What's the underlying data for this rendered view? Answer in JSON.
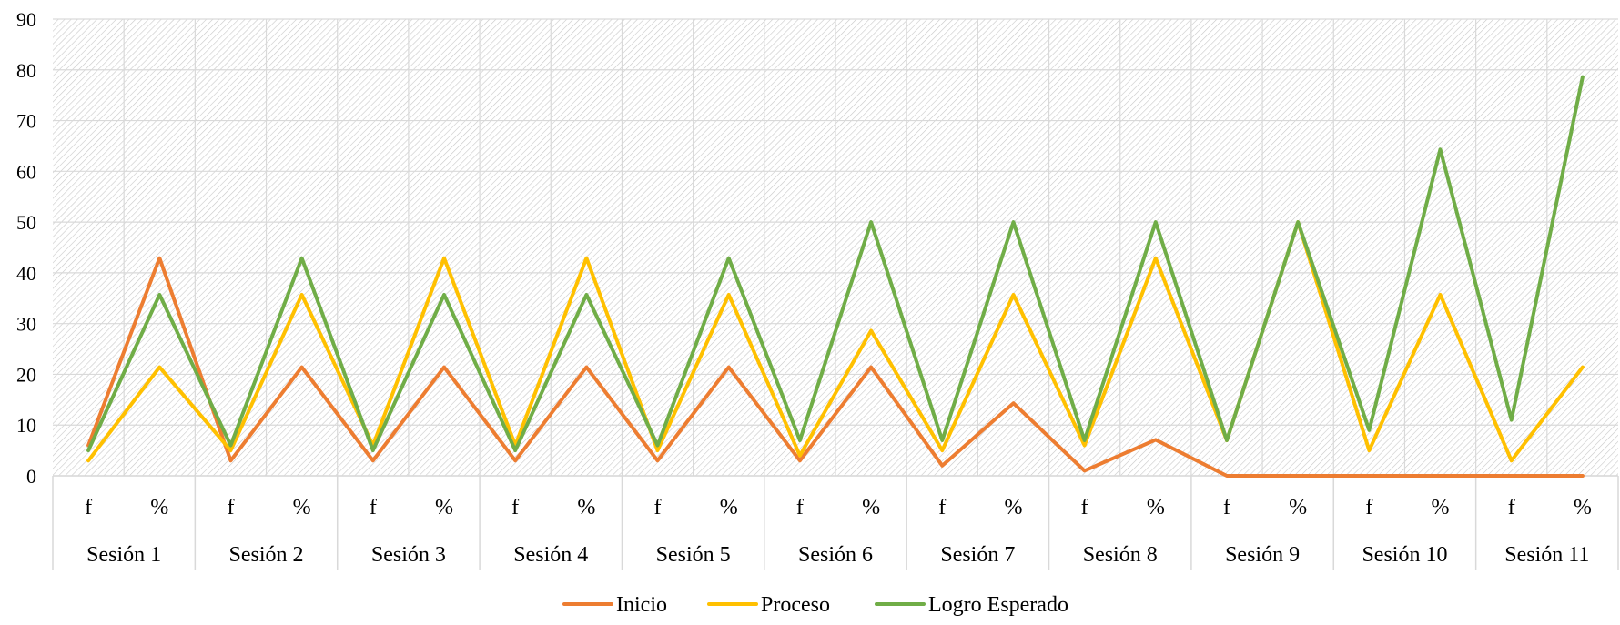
{
  "chart_data": {
    "type": "line",
    "title": "",
    "xlabel": "",
    "ylabel": "",
    "ylim": [
      0,
      90
    ],
    "yticks": [
      0,
      10,
      20,
      30,
      40,
      50,
      60,
      70,
      80,
      90
    ],
    "grid": true,
    "legend_position": "bottom",
    "groups": [
      "Sesión 1",
      "Sesión 2",
      "Sesión 3",
      "Sesión 4",
      "Sesión 5",
      "Sesión 6",
      "Sesión 7",
      "Sesión 8",
      "Sesión 9",
      "Sesión 10",
      "Sesión 11"
    ],
    "subcategories": [
      "f",
      "%"
    ],
    "series": [
      {
        "name": "Inicio",
        "color": "#ED7D31",
        "values": [
          6,
          42.9,
          3,
          21.4,
          3,
          21.4,
          3,
          21.4,
          3,
          21.4,
          3,
          21.4,
          2,
          14.3,
          1,
          7.1,
          0,
          0,
          0,
          0,
          0,
          0
        ]
      },
      {
        "name": "Proceso",
        "color": "#FFC000",
        "values": [
          3,
          21.4,
          5,
          35.7,
          6,
          42.9,
          6,
          42.9,
          5,
          35.7,
          4,
          28.6,
          5,
          35.7,
          6,
          42.9,
          7,
          50,
          5,
          35.7,
          3,
          21.4
        ]
      },
      {
        "name": "Logro Esperado",
        "color": "#70AD47",
        "values": [
          5,
          35.7,
          6,
          42.9,
          5,
          35.7,
          5,
          35.7,
          6,
          42.9,
          7,
          50,
          7,
          50,
          7,
          50,
          7,
          50,
          9,
          64.3,
          11,
          78.6
        ]
      }
    ]
  }
}
